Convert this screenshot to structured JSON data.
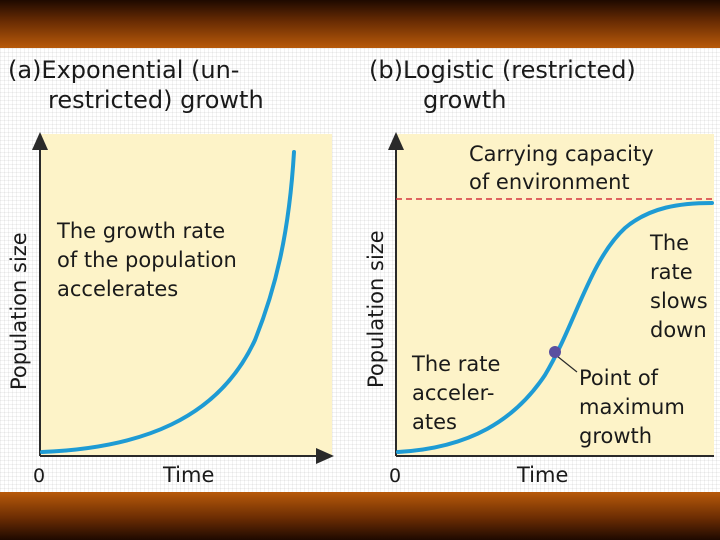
{
  "panel_a": {
    "title_line1": "(a)Exponential (un-",
    "title_line2": "restricted) growth",
    "y_label": "Population size",
    "x_label": "Time",
    "origin_label": "0",
    "note_line1": "The growth rate",
    "note_line2": "of the population",
    "note_line3": "accelerates",
    "curve_color": "#1e9bd4"
  },
  "panel_b": {
    "title_line1": "(b)Logistic (restricted)",
    "title_line2": "growth",
    "y_label": "Population size",
    "x_label": "Time",
    "origin_label": "0",
    "capacity_line1": "Carrying capacity",
    "capacity_line2": "of environment",
    "slows_line1": "The",
    "slows_line2": "rate",
    "slows_line3": "slows",
    "slows_line4": "down",
    "accel_line1": "The rate",
    "accel_line2": "acceler-",
    "accel_line3": "ates",
    "point_line1": "Point of",
    "point_line2": "maximum",
    "point_line3": "growth",
    "curve_color": "#1e9bd4",
    "capacity_color": "#d4343c",
    "point_color": "#5a4fa0"
  },
  "colors": {
    "plot_bg": "#fdf3c8"
  }
}
